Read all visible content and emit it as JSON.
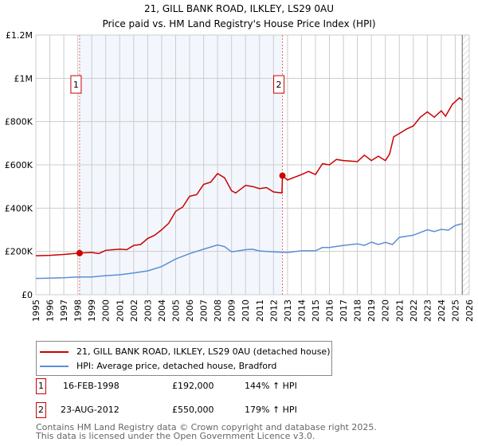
{
  "chart_data": {
    "type": "line",
    "title": "21, GILL BANK ROAD, ILKLEY, LS29 0AU",
    "subtitle": "Price paid vs. HM Land Registry's House Price Index (HPI)",
    "xlim": [
      1995,
      2026
    ],
    "ylim": [
      0,
      1200000
    ],
    "x_ticks": [
      "1995",
      "1996",
      "1997",
      "1998",
      "1999",
      "2000",
      "2001",
      "2002",
      "2003",
      "2004",
      "2005",
      "2006",
      "2007",
      "2008",
      "2009",
      "2010",
      "2011",
      "2012",
      "2013",
      "2014",
      "2015",
      "2016",
      "2017",
      "2018",
      "2019",
      "2020",
      "2021",
      "2022",
      "2023",
      "2024",
      "2025",
      "2026"
    ],
    "y_ticks": [
      {
        "v": 0,
        "label": "£0"
      },
      {
        "v": 200000,
        "label": "£200K"
      },
      {
        "v": 400000,
        "label": "£400K"
      },
      {
        "v": 600000,
        "label": "£600K"
      },
      {
        "v": 800000,
        "label": "£800K"
      },
      {
        "v": 1000000,
        "label": "£1M"
      },
      {
        "v": 1200000,
        "label": "£1.2M"
      }
    ],
    "grid": true,
    "shaded_range": [
      1998.13,
      2012.64
    ],
    "hatched_from": 2025.5,
    "series": [
      {
        "name": "21, GILL BANK ROAD, ILKLEY, LS29 0AU (detached house)",
        "color": "#cc0000",
        "x": [
          1995,
          1996,
          1997,
          1998.13,
          1999,
          1999.5,
          2000,
          2001,
          2001.5,
          2002,
          2002.5,
          2003,
          2003.5,
          2004,
          2004.5,
          2005,
          2005.5,
          2006,
          2006.5,
          2007,
          2007.5,
          2008,
          2008.5,
          2009,
          2009.3,
          2010,
          2010.5,
          2011,
          2011.5,
          2012,
          2012.6,
          2012.64,
          2013,
          2014,
          2014.5,
          2015,
          2015.5,
          2016,
          2016.5,
          2017,
          2018,
          2018.5,
          2019,
          2019.5,
          2020,
          2020.3,
          2020.6,
          2021,
          2021.5,
          2022,
          2022.5,
          2023,
          2023.5,
          2024,
          2024.3,
          2024.8,
          2025.3,
          2025.5
        ],
        "y": [
          180,
          182,
          186,
          192,
          195,
          190,
          205,
          210,
          208,
          228,
          232,
          260,
          275,
          300,
          330,
          385,
          405,
          455,
          462,
          510,
          520,
          560,
          540,
          480,
          470,
          505,
          500,
          490,
          495,
          475,
          470,
          550,
          530,
          555,
          570,
          555,
          605,
          600,
          625,
          620,
          615,
          645,
          620,
          640,
          620,
          650,
          730,
          745,
          765,
          780,
          820,
          845,
          820,
          850,
          825,
          880,
          910,
          900
        ],
        "unit": "K"
      },
      {
        "name": "HPI: Average price, detached house, Bradford",
        "color": "#5b8fd4",
        "x": [
          1995,
          1997,
          1998,
          1999,
          2000,
          2001,
          2002,
          2003,
          2004,
          2005,
          2006,
          2007,
          2008,
          2008.5,
          2009,
          2010,
          2010.5,
          2011,
          2012,
          2013,
          2014,
          2015,
          2015.5,
          2016,
          2017,
          2018,
          2018.5,
          2019,
          2019.5,
          2020,
          2020.5,
          2021,
          2022,
          2023,
          2023.5,
          2024,
          2024.5,
          2025,
          2025.5
        ],
        "y": [
          75,
          78,
          82,
          82,
          88,
          92,
          100,
          110,
          130,
          165,
          190,
          210,
          230,
          222,
          198,
          208,
          210,
          202,
          198,
          195,
          203,
          203,
          218,
          218,
          228,
          235,
          228,
          243,
          232,
          242,
          232,
          265,
          275,
          300,
          292,
          302,
          298,
          320,
          328
        ],
        "unit": "K"
      }
    ],
    "markers": [
      {
        "label": "1",
        "x": 1998.13,
        "y": 192
      },
      {
        "label": "2",
        "x": 2012.64,
        "y": 550
      }
    ]
  },
  "transactions": [
    {
      "num": "1",
      "date": "16-FEB-1998",
      "price": "£192,000",
      "hpi": "144% ↑ HPI"
    },
    {
      "num": "2",
      "date": "23-AUG-2012",
      "price": "£550,000",
      "hpi": "179% ↑ HPI"
    }
  ],
  "footer": [
    "Contains HM Land Registry data © Crown copyright and database right 2025.",
    "This data is licensed under the Open Government Licence v3.0."
  ]
}
